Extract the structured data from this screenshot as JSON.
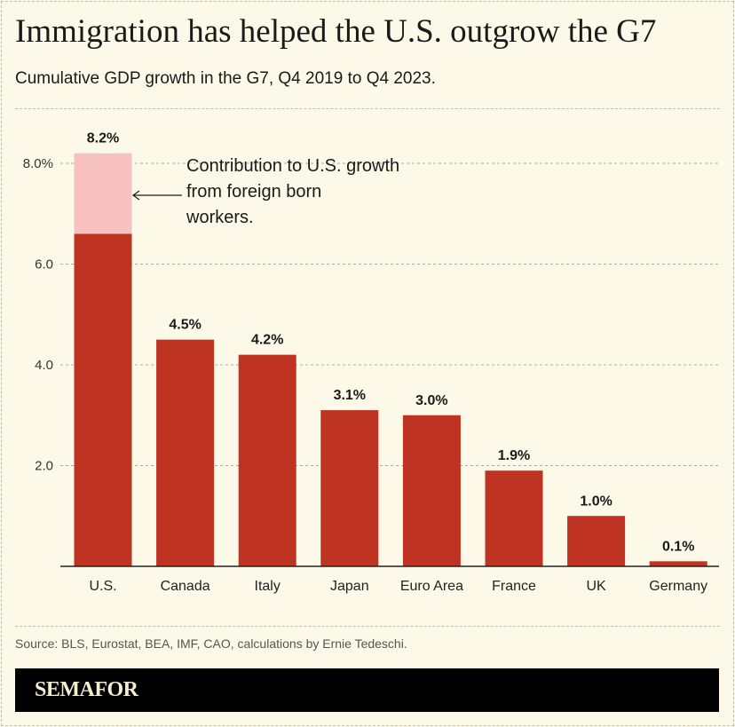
{
  "title": "Immigration has helped the U.S. outgrow the G7",
  "subtitle": "Cumulative GDP growth in the G7, Q4 2019 to Q4 2023.",
  "source": "Source: BLS, Eurostat, BEA, IMF, CAO, calculations by Ernie Tedeschi.",
  "brand": "SEMAFOR",
  "chart_data": {
    "type": "bar",
    "stacked": true,
    "categories": [
      "U.S.",
      "Canada",
      "Italy",
      "Japan",
      "Euro Area",
      "France",
      "UK",
      "Germany"
    ],
    "values": [
      8.2,
      4.5,
      4.2,
      3.1,
      3.0,
      1.9,
      1.0,
      0.1
    ],
    "data_labels": [
      "8.2%",
      "4.5%",
      "4.2%",
      "3.1%",
      "3.0%",
      "1.9%",
      "1.0%",
      "0.1%"
    ],
    "us_breakdown": {
      "base": 6.6,
      "foreign_born_contribution": 1.6
    },
    "ylim": [
      0,
      8.2
    ],
    "yticks": [
      2,
      4,
      6,
      8
    ],
    "ytick_labels": [
      "2.0",
      "4.0",
      "6.0",
      "8.0%"
    ],
    "grid": true,
    "annotation": [
      "Contribution to U.S. growth",
      "from foreign born",
      "workers."
    ],
    "colors": {
      "bar": "#bf3323",
      "highlight": "#f7c1bf",
      "background": "#fcf9e8"
    }
  }
}
